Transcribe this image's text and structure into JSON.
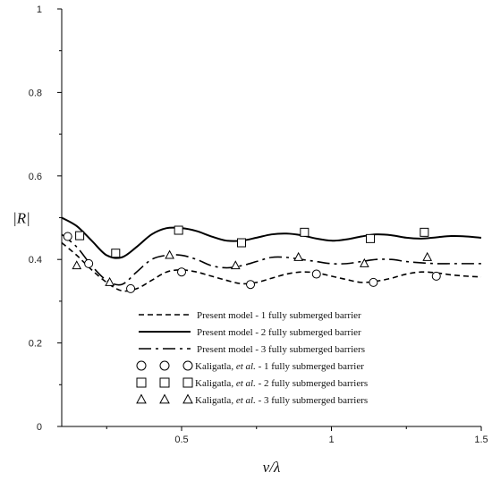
{
  "chart_data": {
    "type": "line",
    "xlabel": "v/λ",
    "ylabel": "|R|",
    "xlim": [
      0.1,
      1.5
    ],
    "ylim": [
      0,
      1
    ],
    "x_ticks": [
      "0.5",
      "1",
      "1.5"
    ],
    "y_ticks": [
      "0",
      "0.2",
      "0.4",
      "0.6",
      "0.8",
      "1"
    ],
    "series": [
      {
        "name": "Present model - 1 fully submerged barrier",
        "kind": "line",
        "style": "dashed",
        "x": [
          0.1,
          0.15,
          0.2,
          0.25,
          0.3,
          0.35,
          0.4,
          0.45,
          0.5,
          0.55,
          0.6,
          0.65,
          0.7,
          0.75,
          0.8,
          0.85,
          0.9,
          0.95,
          1.0,
          1.05,
          1.1,
          1.15,
          1.2,
          1.25,
          1.3,
          1.35,
          1.4,
          1.45,
          1.5
        ],
        "y": [
          0.44,
          0.41,
          0.375,
          0.345,
          0.325,
          0.33,
          0.35,
          0.37,
          0.375,
          0.37,
          0.36,
          0.35,
          0.342,
          0.345,
          0.355,
          0.365,
          0.37,
          0.368,
          0.36,
          0.352,
          0.345,
          0.348,
          0.355,
          0.365,
          0.37,
          0.368,
          0.363,
          0.36,
          0.358
        ]
      },
      {
        "name": "Present model - 2 fully submerged barrier",
        "kind": "line",
        "style": "solid",
        "x": [
          0.1,
          0.15,
          0.2,
          0.25,
          0.3,
          0.35,
          0.4,
          0.45,
          0.5,
          0.55,
          0.6,
          0.65,
          0.7,
          0.75,
          0.8,
          0.85,
          0.9,
          0.95,
          1.0,
          1.05,
          1.1,
          1.15,
          1.2,
          1.25,
          1.3,
          1.35,
          1.4,
          1.45,
          1.5
        ],
        "y": [
          0.5,
          0.48,
          0.445,
          0.41,
          0.405,
          0.43,
          0.46,
          0.475,
          0.475,
          0.468,
          0.455,
          0.445,
          0.445,
          0.452,
          0.46,
          0.462,
          0.458,
          0.45,
          0.445,
          0.448,
          0.455,
          0.46,
          0.458,
          0.452,
          0.45,
          0.453,
          0.456,
          0.455,
          0.452
        ]
      },
      {
        "name": "Present model - 3 fully submerged barriers",
        "kind": "line",
        "style": "dash-dot",
        "x": [
          0.1,
          0.15,
          0.2,
          0.25,
          0.3,
          0.35,
          0.4,
          0.45,
          0.5,
          0.55,
          0.6,
          0.65,
          0.7,
          0.75,
          0.8,
          0.85,
          0.9,
          0.95,
          1.0,
          1.05,
          1.1,
          1.15,
          1.2,
          1.25,
          1.3,
          1.35,
          1.4,
          1.45,
          1.5
        ],
        "y": [
          0.46,
          0.43,
          0.385,
          0.35,
          0.34,
          0.37,
          0.4,
          0.41,
          0.41,
          0.4,
          0.385,
          0.38,
          0.385,
          0.395,
          0.405,
          0.405,
          0.4,
          0.395,
          0.39,
          0.39,
          0.395,
          0.4,
          0.4,
          0.395,
          0.392,
          0.39,
          0.39,
          0.39,
          0.39
        ]
      },
      {
        "name": "Kaligatla, et al. - 1 fully submerged barrier",
        "kind": "markers",
        "marker": "circle",
        "x": [
          0.12,
          0.19,
          0.33,
          0.5,
          0.73,
          0.95,
          1.14,
          1.35
        ],
        "y": [
          0.455,
          0.39,
          0.33,
          0.37,
          0.34,
          0.365,
          0.345,
          0.36
        ]
      },
      {
        "name": "Kaligatla, et al. - 2 fully submerged barriers",
        "kind": "markers",
        "marker": "square",
        "x": [
          0.16,
          0.28,
          0.49,
          0.7,
          0.91,
          1.13,
          1.31
        ],
        "y": [
          0.457,
          0.415,
          0.47,
          0.44,
          0.465,
          0.45,
          0.465
        ]
      },
      {
        "name": "Kaligatla, et al. - 3 fully submerged barriers",
        "kind": "markers",
        "marker": "triangle",
        "x": [
          0.15,
          0.26,
          0.46,
          0.68,
          0.89,
          1.11,
          1.32
        ],
        "y": [
          0.385,
          0.345,
          0.41,
          0.385,
          0.405,
          0.39,
          0.405
        ]
      }
    ],
    "legend": {
      "placement": "bottom-center",
      "entries": [
        {
          "name": "Present model - 1 fully submerged barrier",
          "style": "dashed"
        },
        {
          "name": "Present model - 2 fully submerged barrier",
          "style": "solid"
        },
        {
          "name": "Present model - 3 fully submerged barriers",
          "style": "dash-dot"
        },
        {
          "name_prefix": "Kaligatla, ",
          "name_italic": "et al.",
          "name_suffix": " - 1 fully submerged barrier",
          "marker": "circle"
        },
        {
          "name_prefix": "Kaligatla, ",
          "name_italic": "et al.",
          "name_suffix": " - 2 fully submerged barriers",
          "marker": "square"
        },
        {
          "name_prefix": "Kaligatla, ",
          "name_italic": "et al.",
          "name_suffix": " - 3 fully submerged barriers",
          "marker": "triangle"
        }
      ]
    },
    "grid": false
  }
}
